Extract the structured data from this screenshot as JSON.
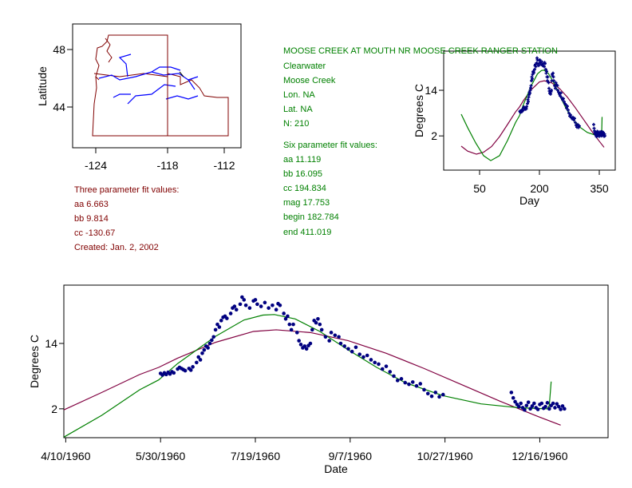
{
  "colors": {
    "three_fit": "#800040",
    "six_fit": "#008000",
    "points": "#000080",
    "info_red": "#800000",
    "info_green": "#008000"
  },
  "map": {
    "ylabel": "Latitude",
    "yticks": [
      "48",
      "44"
    ],
    "xticks": [
      "-124",
      "-118",
      "-112"
    ]
  },
  "three_fit": {
    "title": "Three parameter fit values:",
    "aa": "aa 6.663",
    "bb": "bb 9.814",
    "cc": "cc -130.67",
    "created": "Created:   Jan. 2, 2002"
  },
  "station": {
    "name": "MOOSE CREEK AT MOUTH NR MOOSE CREEK RANGER STATION",
    "basin": "Clearwater",
    "stream": "Moose Creek",
    "lon": "Lon. NA",
    "lat": "Lat. NA",
    "n": "N: 210"
  },
  "six_fit": {
    "title": "Six parameter fit values:",
    "aa": "aa 11.119",
    "bb": "bb 16.095",
    "cc": "cc 194.834",
    "mag": "mag 17.753",
    "begin": "begin 182.784",
    "end": "end 411.019"
  },
  "chart_data": [
    {
      "type": "scatter",
      "name": "day-plot",
      "xlabel": "Day",
      "ylabel": "Degrees C",
      "xticks": [
        {
          "v": 50,
          "label": "50"
        },
        {
          "v": 200,
          "label": "200"
        },
        {
          "v": 350,
          "label": "350"
        }
      ],
      "yticks": [
        {
          "v": 14,
          "label": "14"
        },
        {
          "v": 2,
          "label": "2"
        }
      ],
      "xlim": [
        -40,
        390
      ],
      "ylim": [
        -7,
        24.3
      ]
    },
    {
      "type": "scatter",
      "name": "date-plot",
      "xlabel": "Date",
      "ylabel": "Degrees C",
      "xticks": [
        {
          "v": 101,
          "label": "4/10/1960"
        },
        {
          "v": 151,
          "label": "5/30/1960"
        },
        {
          "v": 201,
          "label": "7/19/1960"
        },
        {
          "v": 251,
          "label": "9/7/1960"
        },
        {
          "v": 301,
          "label": "10/27/1960"
        },
        {
          "v": 351,
          "label": "12/16/1960"
        }
      ],
      "yticks": [
        {
          "v": 14,
          "label": "14"
        },
        {
          "v": 2,
          "label": "2"
        }
      ],
      "xlim": [
        100,
        387
      ],
      "ylim": [
        -3.3,
        24.7
      ]
    }
  ],
  "series": {
    "observed": [
      [
        151,
        8.5
      ],
      [
        152,
        8.2
      ],
      [
        153,
        8.6
      ],
      [
        154,
        8.3
      ],
      [
        155,
        8.7
      ],
      [
        156,
        8.4
      ],
      [
        157,
        8.8
      ],
      [
        158,
        8.6
      ],
      [
        160,
        9.3
      ],
      [
        161,
        9.6
      ],
      [
        162,
        9.4
      ],
      [
        163,
        9.2
      ],
      [
        164,
        9.0
      ],
      [
        166,
        9.4
      ],
      [
        167,
        9.1
      ],
      [
        168,
        9.7
      ],
      [
        170,
        10.5
      ],
      [
        171,
        11.5
      ],
      [
        172,
        11.0
      ],
      [
        173,
        12.2
      ],
      [
        174,
        12.8
      ],
      [
        175,
        13.5
      ],
      [
        176,
        13.2
      ],
      [
        177,
        14.0
      ],
      [
        178,
        14.6
      ],
      [
        179,
        15.2
      ],
      [
        180,
        16.5
      ],
      [
        181,
        17.5
      ],
      [
        182,
        17.0
      ],
      [
        183,
        18.2
      ],
      [
        184,
        18.8
      ],
      [
        185,
        19.0
      ],
      [
        186,
        18.6
      ],
      [
        188,
        19.5
      ],
      [
        189,
        20.5
      ],
      [
        190,
        20.8
      ],
      [
        191,
        20.2
      ],
      [
        193,
        21.2
      ],
      [
        194,
        22.5
      ],
      [
        195,
        22.0
      ],
      [
        196,
        21.0
      ],
      [
        198,
        20.5
      ],
      [
        200,
        21.8
      ],
      [
        201,
        22.0
      ],
      [
        202,
        21.2
      ],
      [
        204,
        20.8
      ],
      [
        206,
        21.5
      ],
      [
        208,
        20.5
      ],
      [
        210,
        21.0
      ],
      [
        212,
        20.2
      ],
      [
        213,
        21.3
      ],
      [
        214,
        21.0
      ],
      [
        216,
        19.5
      ],
      [
        217,
        18.5
      ],
      [
        218,
        19.0
      ],
      [
        219,
        17.5
      ],
      [
        220,
        16.5
      ],
      [
        221,
        17.5
      ],
      [
        223,
        16.0
      ],
      [
        224,
        14.5
      ],
      [
        225,
        13.8
      ],
      [
        226,
        13.2
      ],
      [
        227,
        13.5
      ],
      [
        228,
        13.0
      ],
      [
        229,
        13.6
      ],
      [
        230,
        14.0
      ],
      [
        231,
        16.5
      ],
      [
        232,
        18.2
      ],
      [
        233,
        17.8
      ],
      [
        234,
        18.5
      ],
      [
        235,
        17.5
      ],
      [
        236,
        16.5
      ],
      [
        238,
        15.2
      ],
      [
        240,
        14.5
      ],
      [
        241,
        16.0
      ],
      [
        243,
        15.5
      ],
      [
        245,
        15.2
      ],
      [
        246,
        14.0
      ],
      [
        248,
        13.5
      ],
      [
        250,
        13.0
      ],
      [
        252,
        12.5
      ],
      [
        254,
        13.3
      ],
      [
        256,
        12.0
      ],
      [
        258,
        11.5
      ],
      [
        260,
        11.8
      ],
      [
        262,
        11.0
      ],
      [
        264,
        10.5
      ],
      [
        266,
        10.2
      ],
      [
        268,
        9.3
      ],
      [
        270,
        9.8
      ],
      [
        272,
        8.8
      ],
      [
        274,
        8.0
      ],
      [
        276,
        7.2
      ],
      [
        278,
        7.5
      ],
      [
        280,
        6.8
      ],
      [
        282,
        6.5
      ],
      [
        284,
        6.9
      ],
      [
        286,
        6.2
      ],
      [
        288,
        6.6
      ],
      [
        290,
        5.5
      ],
      [
        292,
        4.8
      ],
      [
        294,
        4.3
      ],
      [
        296,
        5.0
      ],
      [
        298,
        4.2
      ],
      [
        300,
        4.6
      ],
      [
        336,
        5.0
      ],
      [
        337,
        4.0
      ],
      [
        338,
        3.3
      ],
      [
        339,
        2.8
      ],
      [
        340,
        2.4
      ],
      [
        341,
        3.0
      ],
      [
        342,
        2.2
      ],
      [
        343,
        1.8
      ],
      [
        344,
        2.6
      ],
      [
        345,
        3.2
      ],
      [
        346,
        2.0
      ],
      [
        347,
        2.5
      ],
      [
        348,
        3.0
      ],
      [
        349,
        2.2
      ],
      [
        350,
        1.9
      ],
      [
        351,
        2.8
      ],
      [
        352,
        3.0
      ],
      [
        353,
        2.1
      ],
      [
        354,
        2.4
      ],
      [
        355,
        3.1
      ],
      [
        356,
        2.0
      ],
      [
        357,
        2.6
      ],
      [
        358,
        3.0
      ],
      [
        359,
        2.2
      ],
      [
        360,
        2.9
      ],
      [
        361,
        2.4
      ],
      [
        362,
        1.9
      ],
      [
        363,
        2.5
      ],
      [
        364,
        2.0
      ]
    ],
    "six_param_fit": [
      [
        4,
        7.7
      ],
      [
        20,
        4.2
      ],
      [
        40,
        0.2
      ],
      [
        60,
        -3.2
      ],
      [
        78,
        -4.5
      ],
      [
        100,
        -3.2
      ],
      [
        120,
        0.8
      ],
      [
        140,
        5.5
      ],
      [
        150,
        7.3
      ],
      [
        160,
        10.3
      ],
      [
        180,
        15.3
      ],
      [
        195,
        18.3
      ],
      [
        205,
        19.2
      ],
      [
        211,
        19.3
      ],
      [
        222,
        18.5
      ],
      [
        235,
        16.2
      ],
      [
        250,
        12.8
      ],
      [
        265,
        9.6
      ],
      [
        280,
        6.8
      ],
      [
        300,
        4.4
      ],
      [
        320,
        2.9
      ],
      [
        340,
        2.2
      ],
      [
        355,
        2.0
      ],
      [
        356,
        2.6
      ],
      [
        357,
        7.0
      ]
    ],
    "three_param_fit": [
      [
        4,
        -0.7
      ],
      [
        20,
        -2.0
      ],
      [
        42,
        -2.8
      ],
      [
        60,
        -2.3
      ],
      [
        80,
        -0.8
      ],
      [
        100,
        1.8
      ],
      [
        120,
        5.0
      ],
      [
        140,
        8.3
      ],
      [
        150,
        9.6
      ],
      [
        160,
        11.3
      ],
      [
        180,
        14.2
      ],
      [
        200,
        16.2
      ],
      [
        212,
        16.5
      ],
      [
        230,
        16.0
      ],
      [
        250,
        14.5
      ],
      [
        270,
        12.2
      ],
      [
        290,
        9.4
      ],
      [
        310,
        6.4
      ],
      [
        330,
        3.4
      ],
      [
        350,
        0.6
      ],
      [
        362,
        -1.0
      ]
    ]
  }
}
